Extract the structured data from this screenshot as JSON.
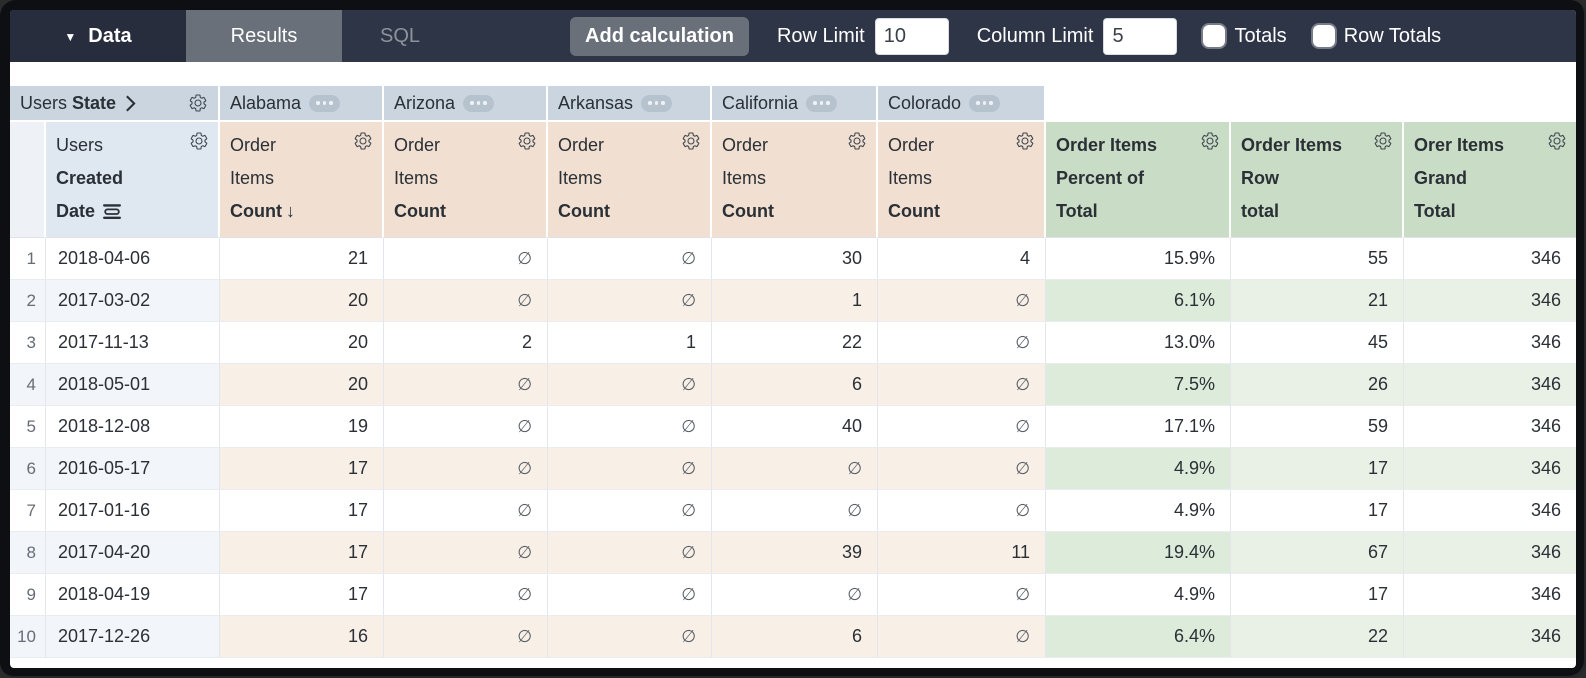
{
  "toolbar": {
    "data_tab": "Data",
    "results_tab": "Results",
    "sql_tab": "SQL",
    "add_calculation": "Add calculation",
    "row_limit_label": "Row Limit",
    "row_limit_value": "10",
    "column_limit_label": "Column Limit",
    "column_limit_value": "5",
    "totals_label": "Totals",
    "totals_checked": false,
    "row_totals_label": "Row Totals",
    "row_totals_checked": false
  },
  "table": {
    "pivot_header": {
      "prefix": "Users",
      "field": "State"
    },
    "pivot_values": [
      "Alabama",
      "Arizona",
      "Arkansas",
      "California",
      "Colorado"
    ],
    "dimension_header": {
      "lines": [
        "Users",
        "Created",
        "Date"
      ],
      "bold_lines": [
        1,
        2
      ]
    },
    "measure_header": {
      "lines": [
        "Order",
        "Items",
        "Count"
      ],
      "bold_lines": [
        2
      ]
    },
    "sort": {
      "column": "Alabama",
      "direction": "desc",
      "arrow": "↓"
    },
    "calc_headers": [
      {
        "lines": [
          "Order Items",
          "Percent of",
          "Total"
        ]
      },
      {
        "lines": [
          "Order Items",
          "Row",
          "total"
        ]
      },
      {
        "lines": [
          "Orer Items",
          "Grand",
          "Total"
        ]
      }
    ],
    "null_symbol": "∅",
    "rows": [
      {
        "n": "1",
        "date": "2018-04-06",
        "values": [
          "21",
          null,
          null,
          "30",
          "4"
        ],
        "calcs": [
          "15.9%",
          "55",
          "346"
        ]
      },
      {
        "n": "2",
        "date": "2017-03-02",
        "values": [
          "20",
          null,
          null,
          "1",
          null
        ],
        "calcs": [
          "6.1%",
          "21",
          "346"
        ]
      },
      {
        "n": "3",
        "date": "2017-11-13",
        "values": [
          "20",
          "2",
          "1",
          "22",
          null
        ],
        "calcs": [
          "13.0%",
          "45",
          "346"
        ]
      },
      {
        "n": "4",
        "date": "2018-05-01",
        "values": [
          "20",
          null,
          null,
          "6",
          null
        ],
        "calcs": [
          "7.5%",
          "26",
          "346"
        ]
      },
      {
        "n": "5",
        "date": "2018-12-08",
        "values": [
          "19",
          null,
          null,
          "40",
          null
        ],
        "calcs": [
          "17.1%",
          "59",
          "346"
        ]
      },
      {
        "n": "6",
        "date": "2016-05-17",
        "values": [
          "17",
          null,
          null,
          null,
          null
        ],
        "calcs": [
          "4.9%",
          "17",
          "346"
        ]
      },
      {
        "n": "7",
        "date": "2017-01-16",
        "values": [
          "17",
          null,
          null,
          null,
          null
        ],
        "calcs": [
          "4.9%",
          "17",
          "346"
        ]
      },
      {
        "n": "8",
        "date": "2017-04-20",
        "values": [
          "17",
          null,
          null,
          "39",
          "11"
        ],
        "calcs": [
          "19.4%",
          "67",
          "346"
        ]
      },
      {
        "n": "9",
        "date": "2018-04-19",
        "values": [
          "17",
          null,
          null,
          null,
          null
        ],
        "calcs": [
          "4.9%",
          "17",
          "346"
        ]
      },
      {
        "n": "10",
        "date": "2017-12-26",
        "values": [
          "16",
          null,
          null,
          "6",
          null
        ],
        "calcs": [
          "6.4%",
          "22",
          "346"
        ]
      }
    ]
  },
  "colors": {
    "frame_bg": "#0e0f12",
    "toolbar_bg": "#2e3546",
    "data_tab_bg": "#272d3c",
    "results_tab_bg": "#6a707a",
    "button_bg": "#6a707a",
    "muted_text": "#8d939c",
    "header_blue": "#cad5e0",
    "header_blue_light": "#dfe7f0",
    "header_rownum": "#eef2f7",
    "header_tan": "#f1dfd1",
    "header_green": "#c9dcc6",
    "pill_bg": "#b6c2cd",
    "row_tint_blue": "#f2f5fa",
    "row_tint_tan": "#f8efe7",
    "row_tint_pct": "#dcebda",
    "row_tint_green": "#e9f1e7",
    "text_dark": "#2a3036",
    "null_gray": "#565d64",
    "rownum_gray": "#666d76",
    "grid_line": "#e3e6ea",
    "grid_line_h": "#eaedf0"
  }
}
